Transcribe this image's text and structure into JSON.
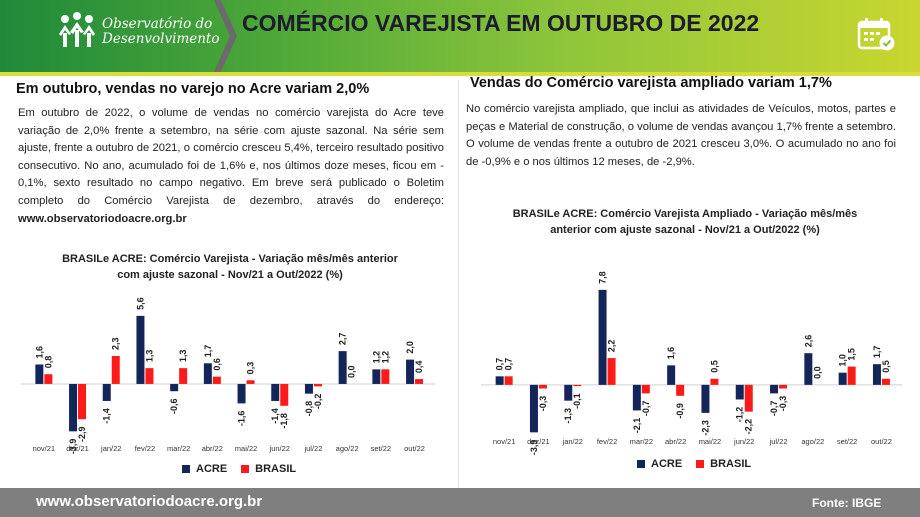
{
  "header": {
    "logo_line1": "Observatório do",
    "logo_line2": "Desenvolvimento",
    "title": "COMÉRCIO VAREJISTA EM OUTUBRO DE 2022",
    "colors": {
      "green": "#1f8a3a",
      "yellow_green": "#c9d62f"
    }
  },
  "left": {
    "heading": "Em outubro, vendas no varejo no Acre variam 2,0%",
    "paragraph": "Em outubro de 2022, o volume de vendas no comércio varejista do Acre teve variação de 2,0% frente a setembro, na série com ajuste sazonal. Na série sem ajuste, frente a outubro de 2021, o comércio cresceu 5,4%, terceiro resultado positivo consecutivo. No ano, acumulado foi de 1,6% e, nos últimos doze meses, ficou em - 0,1%, sexto resultado no campo negativo. Em breve será publicado o Boletim completo do Comércio Varejista de dezembro, através do endereço: ",
    "link": "www.observatoriodoacre.org.br"
  },
  "right": {
    "heading": "Vendas do Comércio varejista ampliado variam 1,7%",
    "paragraph": "No comércio varejista ampliado, que inclui as atividades de Veículos, motos, partes e peças e Material de construção, o volume de vendas avançou 1,7% frente a setembro. O volume de vendas frente a outubro de 2021 cresceu 3,0%. O acumulado no ano foi de -0,9% e o nos últimos 12 meses, de -2,9%."
  },
  "chart_data": [
    {
      "type": "bar",
      "title": "BRASILe ACRE: Comércio Varejista - Variação mês/mês anterior com ajuste sazonal - Nov/21 a Out/2022  (%)",
      "categories": [
        "nov/21",
        "dez/21",
        "jan/22",
        "fev/22",
        "mar/22",
        "abr/22",
        "mai/22",
        "jun/22",
        "jul/22",
        "ago/22",
        "set/22",
        "out/22"
      ],
      "series": [
        {
          "name": "ACRE",
          "color": "#14255a",
          "values": [
            1.6,
            -3.9,
            -1.4,
            5.6,
            -0.6,
            1.7,
            -1.6,
            -1.4,
            -0.8,
            2.7,
            1.2,
            2.0
          ]
        },
        {
          "name": "BRASIL",
          "color": "#ff1a1a",
          "values": [
            0.8,
            -2.9,
            2.3,
            1.3,
            1.3,
            0.6,
            0.3,
            -1.8,
            -0.2,
            0.0,
            1.2,
            0.4
          ]
        }
      ],
      "labels": {
        "ACRE": [
          "1,6",
          "-3,9",
          "-1,4",
          "5,6",
          "-0,6",
          "1,7",
          "-1,6",
          "-1,4",
          "-0,8",
          "2,7",
          "1,2",
          "2,0"
        ],
        "BRASIL": [
          "0,8",
          "-2,9",
          "2,3",
          "1,3",
          "1,3",
          "0,6",
          "0,3",
          "-1,8",
          "-0,2",
          "0,0",
          "1,2",
          "0,4"
        ]
      },
      "ylim": [
        -4.2,
        6.0
      ],
      "legend": "bottom-center"
    },
    {
      "type": "bar",
      "title": "BRASILe ACRE: Comércio Varejista Ampliado - Variação mês/mês anterior com ajuste sazonal - Nov/21 a Out/2022 (%)",
      "categories": [
        "nov/21",
        "dez/21",
        "jan/22",
        "fev/22",
        "mar/22",
        "abr/22",
        "mai/22",
        "jun/22",
        "jul/22",
        "ago/22",
        "set/22",
        "out/22"
      ],
      "series": [
        {
          "name": "ACRE",
          "color": "#14255a",
          "values": [
            0.7,
            -3.9,
            -1.3,
            7.8,
            -2.1,
            1.6,
            -2.3,
            -1.2,
            -0.7,
            2.6,
            1.0,
            1.7
          ]
        },
        {
          "name": "BRASIL",
          "color": "#ff1a1a",
          "values": [
            0.7,
            -0.3,
            -0.1,
            2.2,
            -0.7,
            -0.9,
            0.5,
            -2.2,
            -0.3,
            0.0,
            1.5,
            0.5
          ]
        }
      ],
      "labels": {
        "ACRE": [
          "0,7",
          "-3,9",
          "-1,3",
          "7,8",
          "-2,1",
          "1,6",
          "-2,3",
          "-1,2",
          "-0,7",
          "2,6",
          "1,0",
          "1,7"
        ],
        "BRASIL": [
          "0,7",
          "-0,3",
          "-0,1",
          "2,2",
          "-0,7",
          "-0,9",
          "0,5",
          "-2,2",
          "-0,3",
          "0,0",
          "1,5",
          "0,5"
        ]
      },
      "ylim": [
        -4.2,
        8.2
      ],
      "legend": "bottom-center"
    }
  ],
  "footer": {
    "url": "www.observatoriodoacre.org.br",
    "source": "Fonte: IBGE"
  }
}
